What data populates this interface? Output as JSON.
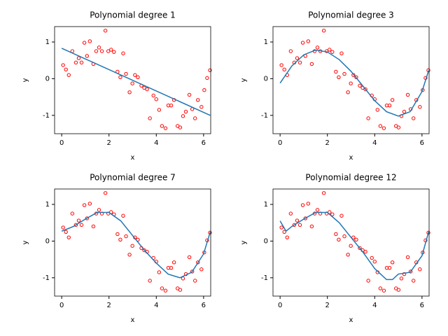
{
  "chart_data": [
    {
      "type": "scatter",
      "title": "Polynomial degree 1",
      "x_label": "x",
      "y_label": "y",
      "xlim": [
        -0.3,
        6.3
      ],
      "xticks": [
        0,
        2,
        4,
        6
      ],
      "ylim": [
        -1.5,
        1.42
      ],
      "yticks": [
        -1,
        0,
        1
      ],
      "series": [
        {
          "type": "scatter",
          "color": "#ff0000",
          "x": [
            0.06,
            0.18,
            0.3,
            0.45,
            0.6,
            0.72,
            0.84,
            0.96,
            1.07,
            1.19,
            1.34,
            1.46,
            1.58,
            1.7,
            1.85,
            1.97,
            2.09,
            2.21,
            2.36,
            2.48,
            2.6,
            2.72,
            2.87,
            2.99,
            3.1,
            3.22,
            3.37,
            3.49,
            3.61,
            3.73,
            3.88,
            4.0,
            4.12,
            4.24,
            4.39,
            4.51,
            4.63,
            4.75,
            4.9,
            5.01,
            5.13,
            5.25,
            5.4,
            5.52,
            5.64,
            5.76,
            5.91,
            6.03,
            6.15,
            6.27
          ],
          "values": [
            0.37,
            0.25,
            0.1,
            0.75,
            0.44,
            0.56,
            0.44,
            0.98,
            0.62,
            1.02,
            0.4,
            0.75,
            0.85,
            0.75,
            1.31,
            0.75,
            0.79,
            0.73,
            0.19,
            0.04,
            0.69,
            0.13,
            -0.37,
            -0.13,
            0.1,
            0.04,
            -0.19,
            -0.25,
            -0.29,
            -1.08,
            -0.46,
            -0.56,
            -0.85,
            -1.29,
            -1.35,
            -0.73,
            -0.73,
            -0.58,
            -1.29,
            -1.33,
            -1.02,
            -0.9,
            -0.44,
            -0.83,
            -1.08,
            -0.58,
            -0.77,
            -0.31,
            0.02,
            0.23
          ]
        },
        {
          "type": "line",
          "color": "#1f77b4",
          "x": [
            0,
            6.28
          ],
          "values": [
            0.83,
            -1.0
          ]
        }
      ]
    },
    {
      "type": "scatter",
      "title": "Polynomial degree 3",
      "x_label": "x",
      "y_label": "y",
      "xlim": [
        -0.3,
        6.3
      ],
      "xticks": [
        0,
        2,
        4,
        6
      ],
      "ylim": [
        -1.5,
        1.42
      ],
      "yticks": [
        -1,
        0,
        1
      ],
      "series": [
        {
          "type": "scatter",
          "color": "#ff0000",
          "x": [
            0.06,
            0.18,
            0.3,
            0.45,
            0.6,
            0.72,
            0.84,
            0.96,
            1.07,
            1.19,
            1.34,
            1.46,
            1.58,
            1.7,
            1.85,
            1.97,
            2.09,
            2.21,
            2.36,
            2.48,
            2.6,
            2.72,
            2.87,
            2.99,
            3.1,
            3.22,
            3.37,
            3.49,
            3.61,
            3.73,
            3.88,
            4.0,
            4.12,
            4.24,
            4.39,
            4.51,
            4.63,
            4.75,
            4.9,
            5.01,
            5.13,
            5.25,
            5.4,
            5.52,
            5.64,
            5.76,
            5.91,
            6.03,
            6.15,
            6.27
          ],
          "values": [
            0.37,
            0.25,
            0.1,
            0.75,
            0.44,
            0.56,
            0.44,
            0.98,
            0.62,
            1.02,
            0.4,
            0.75,
            0.85,
            0.75,
            1.31,
            0.75,
            0.79,
            0.73,
            0.19,
            0.04,
            0.69,
            0.13,
            -0.37,
            -0.13,
            0.1,
            0.04,
            -0.19,
            -0.25,
            -0.29,
            -1.08,
            -0.46,
            -0.56,
            -0.85,
            -1.29,
            -1.35,
            -0.73,
            -0.73,
            -0.58,
            -1.29,
            -1.33,
            -1.02,
            -0.9,
            -0.44,
            -0.83,
            -1.08,
            -0.58,
            -0.77,
            -0.31,
            0.02,
            0.23
          ]
        },
        {
          "type": "line",
          "color": "#1f77b4",
          "x": [
            0,
            0.5,
            1,
            1.5,
            2,
            2.5,
            3,
            3.5,
            4,
            4.5,
            5,
            5.5,
            6,
            6.28
          ],
          "values": [
            -0.12,
            0.35,
            0.65,
            0.78,
            0.73,
            0.52,
            0.2,
            -0.2,
            -0.6,
            -0.9,
            -1.02,
            -0.9,
            -0.35,
            0.22
          ]
        }
      ]
    },
    {
      "type": "scatter",
      "title": "Polynomial degree 7",
      "x_label": "x",
      "y_label": "y",
      "xlim": [
        -0.3,
        6.3
      ],
      "xticks": [
        0,
        2,
        4,
        6
      ],
      "ylim": [
        -1.5,
        1.42
      ],
      "yticks": [
        -1,
        0,
        1
      ],
      "series": [
        {
          "type": "scatter",
          "color": "#ff0000",
          "x": [
            0.06,
            0.18,
            0.3,
            0.45,
            0.6,
            0.72,
            0.84,
            0.96,
            1.07,
            1.19,
            1.34,
            1.46,
            1.58,
            1.7,
            1.85,
            1.97,
            2.09,
            2.21,
            2.36,
            2.48,
            2.6,
            2.72,
            2.87,
            2.99,
            3.1,
            3.22,
            3.37,
            3.49,
            3.61,
            3.73,
            3.88,
            4.0,
            4.12,
            4.24,
            4.39,
            4.51,
            4.63,
            4.75,
            4.9,
            5.01,
            5.13,
            5.25,
            5.4,
            5.52,
            5.64,
            5.76,
            5.91,
            6.03,
            6.15,
            6.27
          ],
          "values": [
            0.37,
            0.25,
            0.1,
            0.75,
            0.44,
            0.56,
            0.44,
            0.98,
            0.62,
            1.02,
            0.4,
            0.75,
            0.85,
            0.75,
            1.31,
            0.75,
            0.79,
            0.73,
            0.19,
            0.04,
            0.69,
            0.13,
            -0.37,
            -0.13,
            0.1,
            0.04,
            -0.19,
            -0.25,
            -0.29,
            -1.08,
            -0.46,
            -0.56,
            -0.85,
            -1.29,
            -1.35,
            -0.73,
            -0.73,
            -0.58,
            -1.29,
            -1.33,
            -1.02,
            -0.9,
            -0.44,
            -0.83,
            -1.08,
            -0.58,
            -0.77,
            -0.31,
            0.02,
            0.23
          ]
        },
        {
          "type": "line",
          "color": "#1f77b4",
          "x": [
            0,
            0.5,
            1,
            1.5,
            2,
            2.5,
            3,
            3.5,
            4,
            4.5,
            5,
            5.5,
            6,
            6.28
          ],
          "values": [
            0.27,
            0.4,
            0.6,
            0.78,
            0.78,
            0.55,
            0.15,
            -0.25,
            -0.6,
            -0.9,
            -1.0,
            -0.85,
            -0.35,
            0.25
          ]
        }
      ]
    },
    {
      "type": "scatter",
      "title": "Polynomial degree 12",
      "x_label": "x",
      "y_label": "y",
      "xlim": [
        -0.3,
        6.3
      ],
      "xticks": [
        0,
        2,
        4,
        6
      ],
      "ylim": [
        -1.5,
        1.42
      ],
      "yticks": [
        -1,
        0,
        1
      ],
      "series": [
        {
          "type": "scatter",
          "color": "#ff0000",
          "x": [
            0.06,
            0.18,
            0.3,
            0.45,
            0.6,
            0.72,
            0.84,
            0.96,
            1.07,
            1.19,
            1.34,
            1.46,
            1.58,
            1.7,
            1.85,
            1.97,
            2.09,
            2.21,
            2.36,
            2.48,
            2.6,
            2.72,
            2.87,
            2.99,
            3.1,
            3.22,
            3.37,
            3.49,
            3.61,
            3.73,
            3.88,
            4.0,
            4.12,
            4.24,
            4.39,
            4.51,
            4.63,
            4.75,
            4.9,
            5.01,
            5.13,
            5.25,
            5.4,
            5.52,
            5.64,
            5.76,
            5.91,
            6.03,
            6.15,
            6.27
          ],
          "values": [
            0.37,
            0.25,
            0.1,
            0.75,
            0.44,
            0.56,
            0.44,
            0.98,
            0.62,
            1.02,
            0.4,
            0.75,
            0.85,
            0.75,
            1.31,
            0.75,
            0.79,
            0.73,
            0.19,
            0.04,
            0.69,
            0.13,
            -0.37,
            -0.13,
            0.1,
            0.04,
            -0.19,
            -0.25,
            -0.29,
            -1.08,
            -0.46,
            -0.56,
            -0.85,
            -1.29,
            -1.35,
            -0.73,
            -0.73,
            -0.58,
            -1.29,
            -1.33,
            -1.02,
            -0.9,
            -0.44,
            -0.83,
            -1.08,
            -0.58,
            -0.77,
            -0.31,
            0.02,
            0.23
          ]
        },
        {
          "type": "line",
          "color": "#1f77b4",
          "x": [
            0,
            0.25,
            0.5,
            1,
            1.5,
            2,
            2.5,
            3,
            3.5,
            4,
            4.5,
            4.75,
            5,
            5.5,
            6,
            6.28
          ],
          "values": [
            0.55,
            0.27,
            0.4,
            0.6,
            0.78,
            0.78,
            0.5,
            0.1,
            -0.3,
            -0.75,
            -1.05,
            -1.05,
            -0.9,
            -0.85,
            -0.4,
            0.25
          ]
        }
      ]
    }
  ]
}
